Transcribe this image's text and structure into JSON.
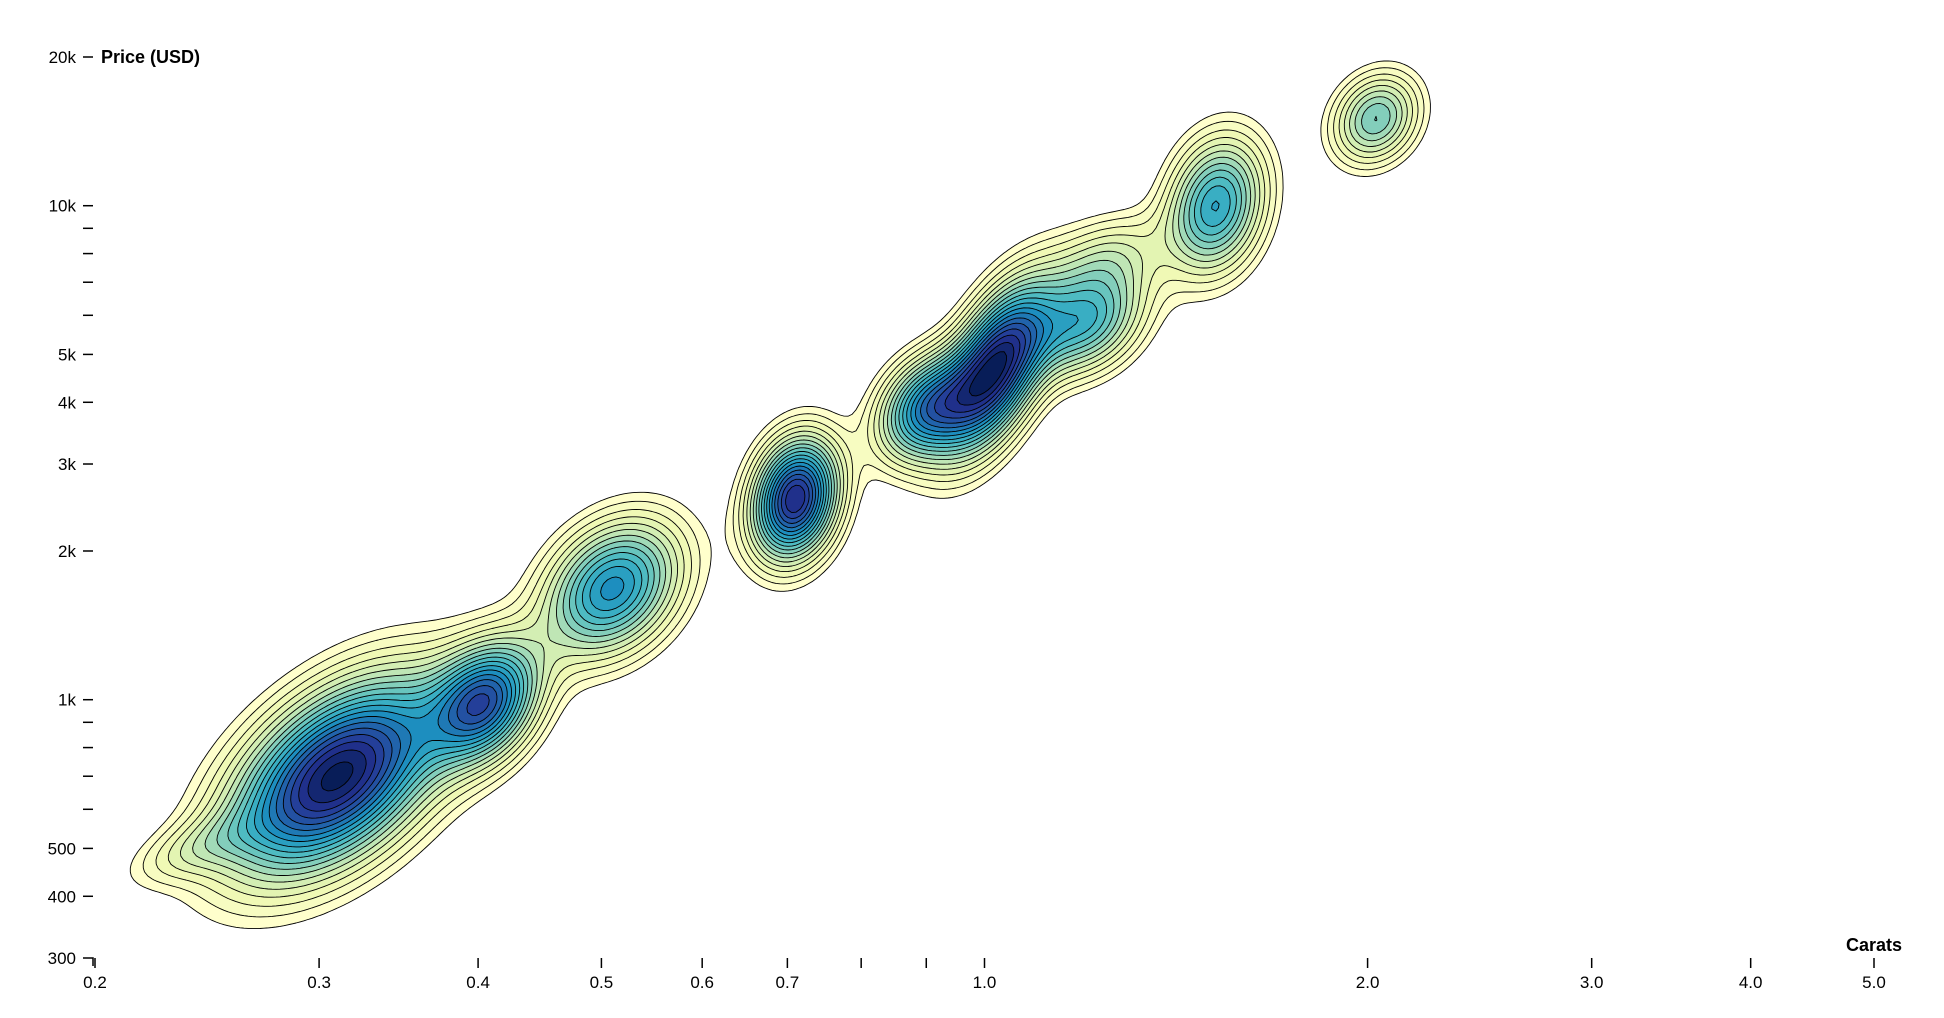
{
  "chart_data": {
    "type": "contour-density",
    "x_axis": {
      "title": "Carats",
      "scale": "log",
      "range": [
        0.2,
        5.0
      ],
      "labeled_ticks": [
        {
          "value": 0.2,
          "label": "0.2"
        },
        {
          "value": 0.3,
          "label": "0.3"
        },
        {
          "value": 0.4,
          "label": "0.4"
        },
        {
          "value": 0.5,
          "label": "0.5"
        },
        {
          "value": 0.6,
          "label": "0.6"
        },
        {
          "value": 0.7,
          "label": "0.7"
        },
        {
          "value": 1.0,
          "label": "1.0"
        },
        {
          "value": 2.0,
          "label": "2.0"
        },
        {
          "value": 3.0,
          "label": "3.0"
        },
        {
          "value": 4.0,
          "label": "4.0"
        },
        {
          "value": 5.0,
          "label": "5.0"
        }
      ],
      "minor_ticks": [
        0.8,
        0.9
      ]
    },
    "y_axis": {
      "title": "Price (USD)",
      "scale": "log",
      "range": [
        300,
        20000
      ],
      "labeled_ticks": [
        {
          "value": 300,
          "label": "300"
        },
        {
          "value": 400,
          "label": "400"
        },
        {
          "value": 500,
          "label": "500"
        },
        {
          "value": 1000,
          "label": "1k"
        },
        {
          "value": 2000,
          "label": "2k"
        },
        {
          "value": 3000,
          "label": "3k"
        },
        {
          "value": 4000,
          "label": "4k"
        },
        {
          "value": 5000,
          "label": "5k"
        },
        {
          "value": 10000,
          "label": "10k"
        },
        {
          "value": 20000,
          "label": "20k"
        }
      ],
      "minor_ticks": [
        600,
        700,
        800,
        900,
        6000,
        7000,
        8000,
        9000
      ]
    },
    "density_peaks": [
      {
        "carats": 0.31,
        "price": 700,
        "weight": 1.0,
        "spread_x": 0.055,
        "spread_y": 0.13,
        "corr": 0.5
      },
      {
        "carats": 0.405,
        "price": 990,
        "weight": 0.72,
        "spread_x": 0.028,
        "spread_y": 0.08,
        "corr": 0.3
      },
      {
        "carats": 0.51,
        "price": 1680,
        "weight": 0.62,
        "spread_x": 0.035,
        "spread_y": 0.09,
        "corr": 0.3
      },
      {
        "carats": 0.71,
        "price": 2550,
        "weight": 0.92,
        "spread_x": 0.022,
        "spread_y": 0.08,
        "corr": 0.2
      },
      {
        "carats": 0.9,
        "price": 3900,
        "weight": 0.62,
        "spread_x": 0.025,
        "spread_y": 0.07,
        "corr": 0.3
      },
      {
        "carats": 1.02,
        "price": 4700,
        "weight": 0.95,
        "spread_x": 0.028,
        "spread_y": 0.11,
        "corr": 0.55
      },
      {
        "carats": 1.2,
        "price": 5800,
        "weight": 0.48,
        "spread_x": 0.03,
        "spread_y": 0.07,
        "corr": 0.3
      },
      {
        "carats": 1.52,
        "price": 10000,
        "weight": 0.55,
        "spread_x": 0.025,
        "spread_y": 0.09,
        "corr": 0.2
      },
      {
        "carats": 2.03,
        "price": 15000,
        "weight": 0.4,
        "spread_x": 0.022,
        "spread_y": 0.06,
        "corr": 0.2
      },
      {
        "carats": 0.24,
        "price": 500,
        "weight": 0.14,
        "spread_x": 0.035,
        "spread_y": 0.05,
        "corr": 0.6
      },
      {
        "carats": 1.25,
        "price": 7800,
        "weight": 0.2,
        "spread_x": 0.03,
        "spread_y": 0.06,
        "corr": 0.3
      }
    ],
    "contour_levels": 20,
    "color_scheme": [
      "#ffffcc",
      "#edf8b1",
      "#c7e9b4",
      "#7fcdbb",
      "#41b6c4",
      "#1d91c0",
      "#225ea8",
      "#253494",
      "#081d58"
    ],
    "grid": false,
    "legend": "none"
  }
}
